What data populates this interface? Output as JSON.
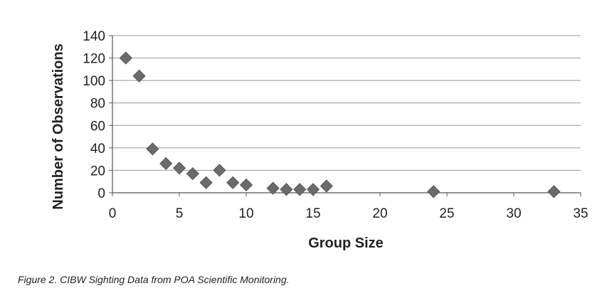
{
  "chart_data": {
    "type": "scatter",
    "title": "",
    "xlabel": "Group Size",
    "ylabel": "Number of Observations",
    "xlim": [
      0,
      35
    ],
    "ylim": [
      0,
      140
    ],
    "xticks": [
      0,
      5,
      10,
      15,
      20,
      25,
      30,
      35
    ],
    "yticks": [
      0,
      20,
      40,
      60,
      80,
      100,
      120,
      140
    ],
    "grid": true,
    "marker": "diamond",
    "colors": {
      "marker": "#6b6b6b",
      "grid": "#9a9a9a",
      "axis": "#555555",
      "text": "#222222"
    },
    "points": [
      {
        "x": 1,
        "y": 120
      },
      {
        "x": 2,
        "y": 104
      },
      {
        "x": 3,
        "y": 39
      },
      {
        "x": 4,
        "y": 26
      },
      {
        "x": 5,
        "y": 22
      },
      {
        "x": 6,
        "y": 17
      },
      {
        "x": 7,
        "y": 9
      },
      {
        "x": 8,
        "y": 20
      },
      {
        "x": 9,
        "y": 9
      },
      {
        "x": 10,
        "y": 7
      },
      {
        "x": 12,
        "y": 4
      },
      {
        "x": 13,
        "y": 3
      },
      {
        "x": 14,
        "y": 3
      },
      {
        "x": 15,
        "y": 3
      },
      {
        "x": 16,
        "y": 6
      },
      {
        "x": 24,
        "y": 1
      },
      {
        "x": 33,
        "y": 1
      }
    ]
  },
  "caption": "Figure 2. CIBW Sighting Data from POA Scientific Monitoring."
}
